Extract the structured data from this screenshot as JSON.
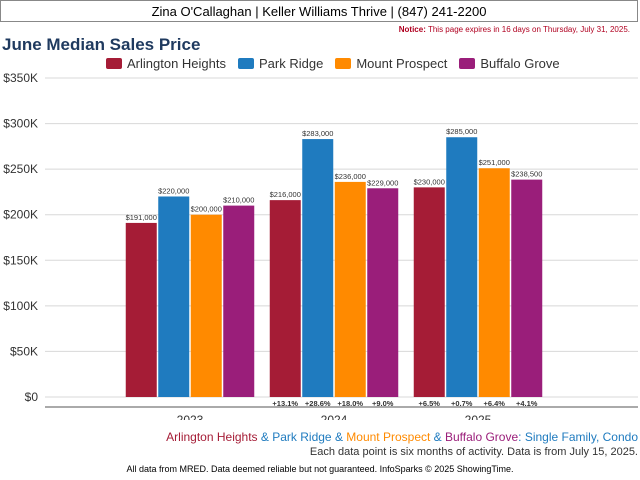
{
  "header": {
    "agent_line": "Zina O'Callaghan | Keller Williams Thrive | (847) 241-2200"
  },
  "notice": {
    "label": "Notice:",
    "text": "This page expires in 16 days on Thursday, July 31, 2025."
  },
  "colors": {
    "Arlington Heights": "#a51c36",
    "Park Ridge": "#1f7bbf",
    "Mount Prospect": "#ff8a00",
    "Buffalo Grove": "#9a1e7a",
    "text_blue": "#1f7bbf"
  },
  "chart_data": {
    "type": "bar",
    "title": "June Median Sales Price",
    "categories": [
      "2023",
      "2024",
      "2025"
    ],
    "ylim": [
      0,
      350000
    ],
    "yticks": [
      0,
      50000,
      100000,
      150000,
      200000,
      250000,
      300000,
      350000
    ],
    "ytick_labels": [
      "$0",
      "$50K",
      "$100K",
      "$150K",
      "$200K",
      "$250K",
      "$300K",
      "$350K"
    ],
    "grid": true,
    "legend_position": "top",
    "series": [
      {
        "name": "Arlington Heights",
        "values": [
          191000,
          216000,
          230000
        ],
        "labels": [
          "$191,000",
          "$216,000",
          "$230,000"
        ],
        "changes": [
          "",
          "+13.1%",
          "+6.5%"
        ]
      },
      {
        "name": "Park Ridge",
        "values": [
          220000,
          283000,
          285000
        ],
        "labels": [
          "$220,000",
          "$283,000",
          "$285,000"
        ],
        "changes": [
          "",
          "+28.6%",
          "+0.7%"
        ]
      },
      {
        "name": "Mount Prospect",
        "values": [
          200000,
          236000,
          251000
        ],
        "labels": [
          "$200,000",
          "$236,000",
          "$251,000"
        ],
        "changes": [
          "",
          "+18.0%",
          "+6.4%"
        ]
      },
      {
        "name": "Buffalo Grove",
        "values": [
          210000,
          229000,
          238500
        ],
        "labels": [
          "$210,000",
          "$229,000",
          "$238,500"
        ],
        "changes": [
          "",
          "+9.0%",
          "+4.1%"
        ]
      }
    ]
  },
  "footer": {
    "summary_names": [
      "Arlington Heights",
      "Park Ridge",
      "Mount Prospect",
      "Buffalo Grove"
    ],
    "summary_sep": " & ",
    "summary_suffix": ": Single Family, Condo",
    "note": "Each data point is six months of activity. Data is from July 15, 2025.",
    "disclaimer": "All data from MRED. Data deemed reliable but not guaranteed. InfoSparks © 2025 ShowingTime."
  }
}
